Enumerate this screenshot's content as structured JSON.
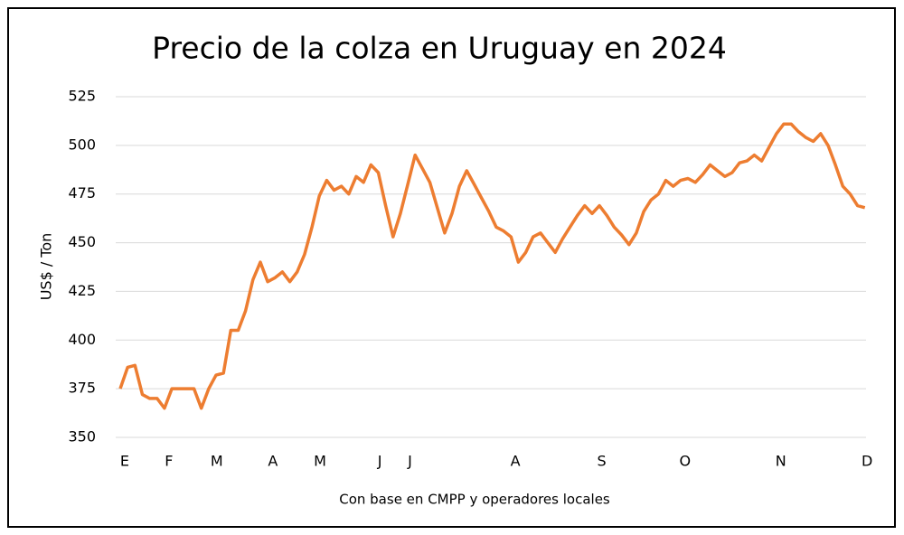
{
  "chart_data": {
    "type": "line",
    "title": "Precio de la colza en Uruguay en 2024",
    "ylabel": "US$ / Ton",
    "note": "Con base en CMPP y operadores locales",
    "x": [
      0,
      1,
      2,
      3,
      4,
      5,
      6,
      7,
      8,
      9,
      10,
      11,
      12,
      13,
      14,
      15,
      16,
      17,
      18,
      19,
      20,
      21,
      22,
      23,
      24,
      25,
      26,
      27,
      28,
      29,
      30,
      31,
      32,
      33,
      34,
      35,
      36,
      37,
      38,
      39,
      40,
      41,
      42,
      43,
      44,
      45,
      46,
      47,
      48,
      49,
      50,
      51,
      52,
      53,
      54,
      55,
      56,
      57,
      58,
      59,
      60,
      61,
      62,
      63,
      64,
      65,
      66,
      67,
      68,
      69,
      70,
      71,
      72,
      73,
      74,
      75,
      76,
      77,
      78,
      79,
      80,
      81,
      82,
      83,
      84,
      85,
      86,
      87,
      88,
      89,
      90,
      91,
      92,
      93,
      94,
      95,
      96,
      97,
      98,
      99,
      100,
      101
    ],
    "series": [
      {
        "color": "#ED7D31",
        "values": [
          375,
          386,
          387,
          372,
          370,
          370,
          365,
          375,
          375,
          375,
          375,
          365,
          375,
          382,
          383,
          405,
          405,
          415,
          431,
          440,
          430,
          432,
          435,
          430,
          435,
          444,
          458,
          474,
          482,
          477,
          479,
          475,
          484,
          481,
          490,
          486,
          469,
          453,
          465,
          480,
          495,
          488,
          481,
          468,
          455,
          465,
          479,
          487,
          480,
          473,
          466,
          458,
          456,
          453,
          440,
          445,
          453,
          455,
          450,
          445,
          452,
          458,
          464,
          469,
          465,
          469,
          464,
          458,
          454,
          449,
          455,
          466,
          472,
          475,
          482,
          479,
          482,
          483,
          481,
          485,
          490,
          487,
          484,
          486,
          491,
          492,
          495,
          492,
          499,
          506,
          511,
          511,
          507,
          504,
          502,
          506,
          500,
          490,
          479,
          475,
          469,
          468
        ]
      }
    ],
    "xlim": [
      0,
      101.4
    ],
    "xticks": [
      {
        "value": 0.6,
        "label": "E"
      },
      {
        "value": 6.6,
        "label": "F"
      },
      {
        "value": 13.1,
        "label": "M"
      },
      {
        "value": 20.7,
        "label": "A"
      },
      {
        "value": 27.1,
        "label": "M"
      },
      {
        "value": 35.2,
        "label": "J"
      },
      {
        "value": 39.3,
        "label": "J"
      },
      {
        "value": 53.6,
        "label": "A"
      },
      {
        "value": 65.3,
        "label": "S"
      },
      {
        "value": 76.6,
        "label": "O"
      },
      {
        "value": 89.6,
        "label": "N"
      },
      {
        "value": 101.3,
        "label": "D"
      }
    ],
    "ylim": [
      350,
      525
    ],
    "yticks": [
      350,
      375,
      400,
      425,
      450,
      475,
      500,
      525
    ],
    "grid": true
  }
}
